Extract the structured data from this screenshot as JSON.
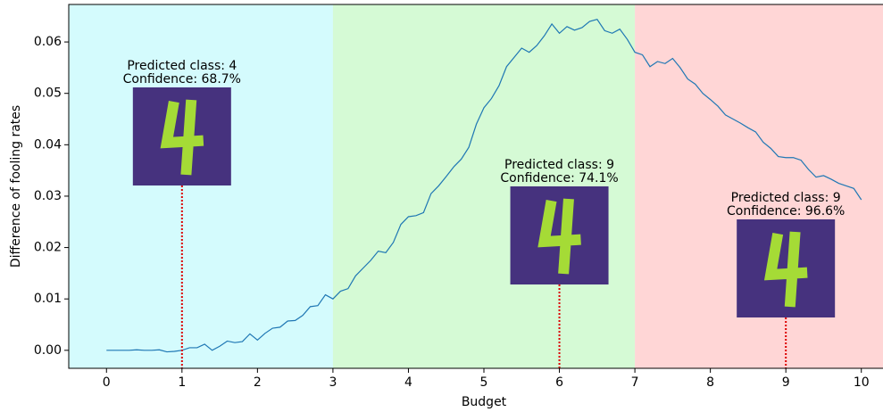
{
  "chart_data": {
    "type": "line",
    "xlabel": "Budget",
    "ylabel": "Difference of fooling rates",
    "xlim": [
      -0.5,
      10.5
    ],
    "ylim": [
      -0.0035,
      0.0673
    ],
    "xticks": [
      0,
      1,
      2,
      3,
      4,
      5,
      6,
      7,
      8,
      9,
      10
    ],
    "yticks": [
      {
        "value": 0,
        "label": "0.00"
      },
      {
        "value": 0.01,
        "label": "0.01"
      },
      {
        "value": 0.02,
        "label": "0.02"
      },
      {
        "value": 0.03,
        "label": "0.03"
      },
      {
        "value": 0.04,
        "label": "0.04"
      },
      {
        "value": 0.05,
        "label": "0.05"
      },
      {
        "value": 0.06,
        "label": "0.06"
      }
    ],
    "region_bounds": [
      3,
      7
    ],
    "region_colors": [
      "#d4fbfd",
      "#d5fad5",
      "#ffd6d6"
    ],
    "series": [
      {
        "color": "#1f77b4",
        "x": [
          0,
          0.1,
          0.2,
          0.3,
          0.4,
          0.5,
          0.6,
          0.7,
          0.8,
          0.9,
          1,
          1.1,
          1.2,
          1.3,
          1.4,
          1.5,
          1.6,
          1.7,
          1.8,
          1.9,
          2,
          2.1,
          2.2,
          2.3,
          2.4,
          2.5,
          2.6,
          2.7,
          2.8,
          2.9,
          3,
          3.1,
          3.2,
          3.3,
          3.4,
          3.5,
          3.6,
          3.7,
          3.8,
          3.9,
          4,
          4.1,
          4.2,
          4.3,
          4.4,
          4.5,
          4.6,
          4.7,
          4.8,
          4.9,
          5,
          5.1,
          5.2,
          5.3,
          5.4,
          5.5,
          5.6,
          5.7,
          5.8,
          5.9,
          6,
          6.1,
          6.2,
          6.3,
          6.4,
          6.5,
          6.6,
          6.7,
          6.8,
          6.9,
          7,
          7.1,
          7.2,
          7.3,
          7.4,
          7.5,
          7.6,
          7.7,
          7.8,
          7.9,
          8,
          8.1,
          8.2,
          8.3,
          8.4,
          8.5,
          8.6,
          8.7,
          8.8,
          8.9,
          9,
          9.1,
          9.2,
          9.3,
          9.4,
          9.5,
          9.6,
          9.7,
          9.8,
          9.9,
          10
        ],
        "values": [
          0,
          0,
          0,
          0,
          0.0001,
          0,
          0,
          0.0001,
          -0.0003,
          -0.0002,
          0,
          0.0005,
          0.0005,
          0.0012,
          0,
          0.0008,
          0.0018,
          0.0015,
          0.0017,
          0.0032,
          0.002,
          0.0033,
          0.0043,
          0.0045,
          0.0057,
          0.0058,
          0.0068,
          0.0085,
          0.0087,
          0.0108,
          0.01,
          0.0115,
          0.012,
          0.0145,
          0.016,
          0.0175,
          0.0193,
          0.019,
          0.021,
          0.0245,
          0.026,
          0.0262,
          0.0268,
          0.0305,
          0.032,
          0.0338,
          0.0357,
          0.0372,
          0.0395,
          0.044,
          0.0472,
          0.049,
          0.0515,
          0.0552,
          0.057,
          0.0588,
          0.058,
          0.0593,
          0.0612,
          0.0635,
          0.0617,
          0.063,
          0.0623,
          0.0628,
          0.064,
          0.0644,
          0.0622,
          0.0617,
          0.0625,
          0.0605,
          0.058,
          0.0575,
          0.0552,
          0.0562,
          0.0558,
          0.0568,
          0.055,
          0.0528,
          0.0518,
          0.05,
          0.0488,
          0.0475,
          0.0458,
          0.045,
          0.0442,
          0.0433,
          0.0425,
          0.0405,
          0.0393,
          0.0377,
          0.0375,
          0.0375,
          0.037,
          0.0352,
          0.0337,
          0.034,
          0.0333,
          0.0325,
          0.032,
          0.0315,
          0.0293
        ]
      }
    ],
    "annotations": [
      {
        "x": 1,
        "text": [
          "Predicted class: 4",
          "Confidence: 68.7%"
        ]
      },
      {
        "x": 6,
        "text": [
          "Predicted class: 9",
          "Confidence: 74.1%"
        ]
      },
      {
        "x": 9,
        "text": [
          "Predicted class: 9",
          "Confidence: 96.6%"
        ]
      }
    ]
  }
}
